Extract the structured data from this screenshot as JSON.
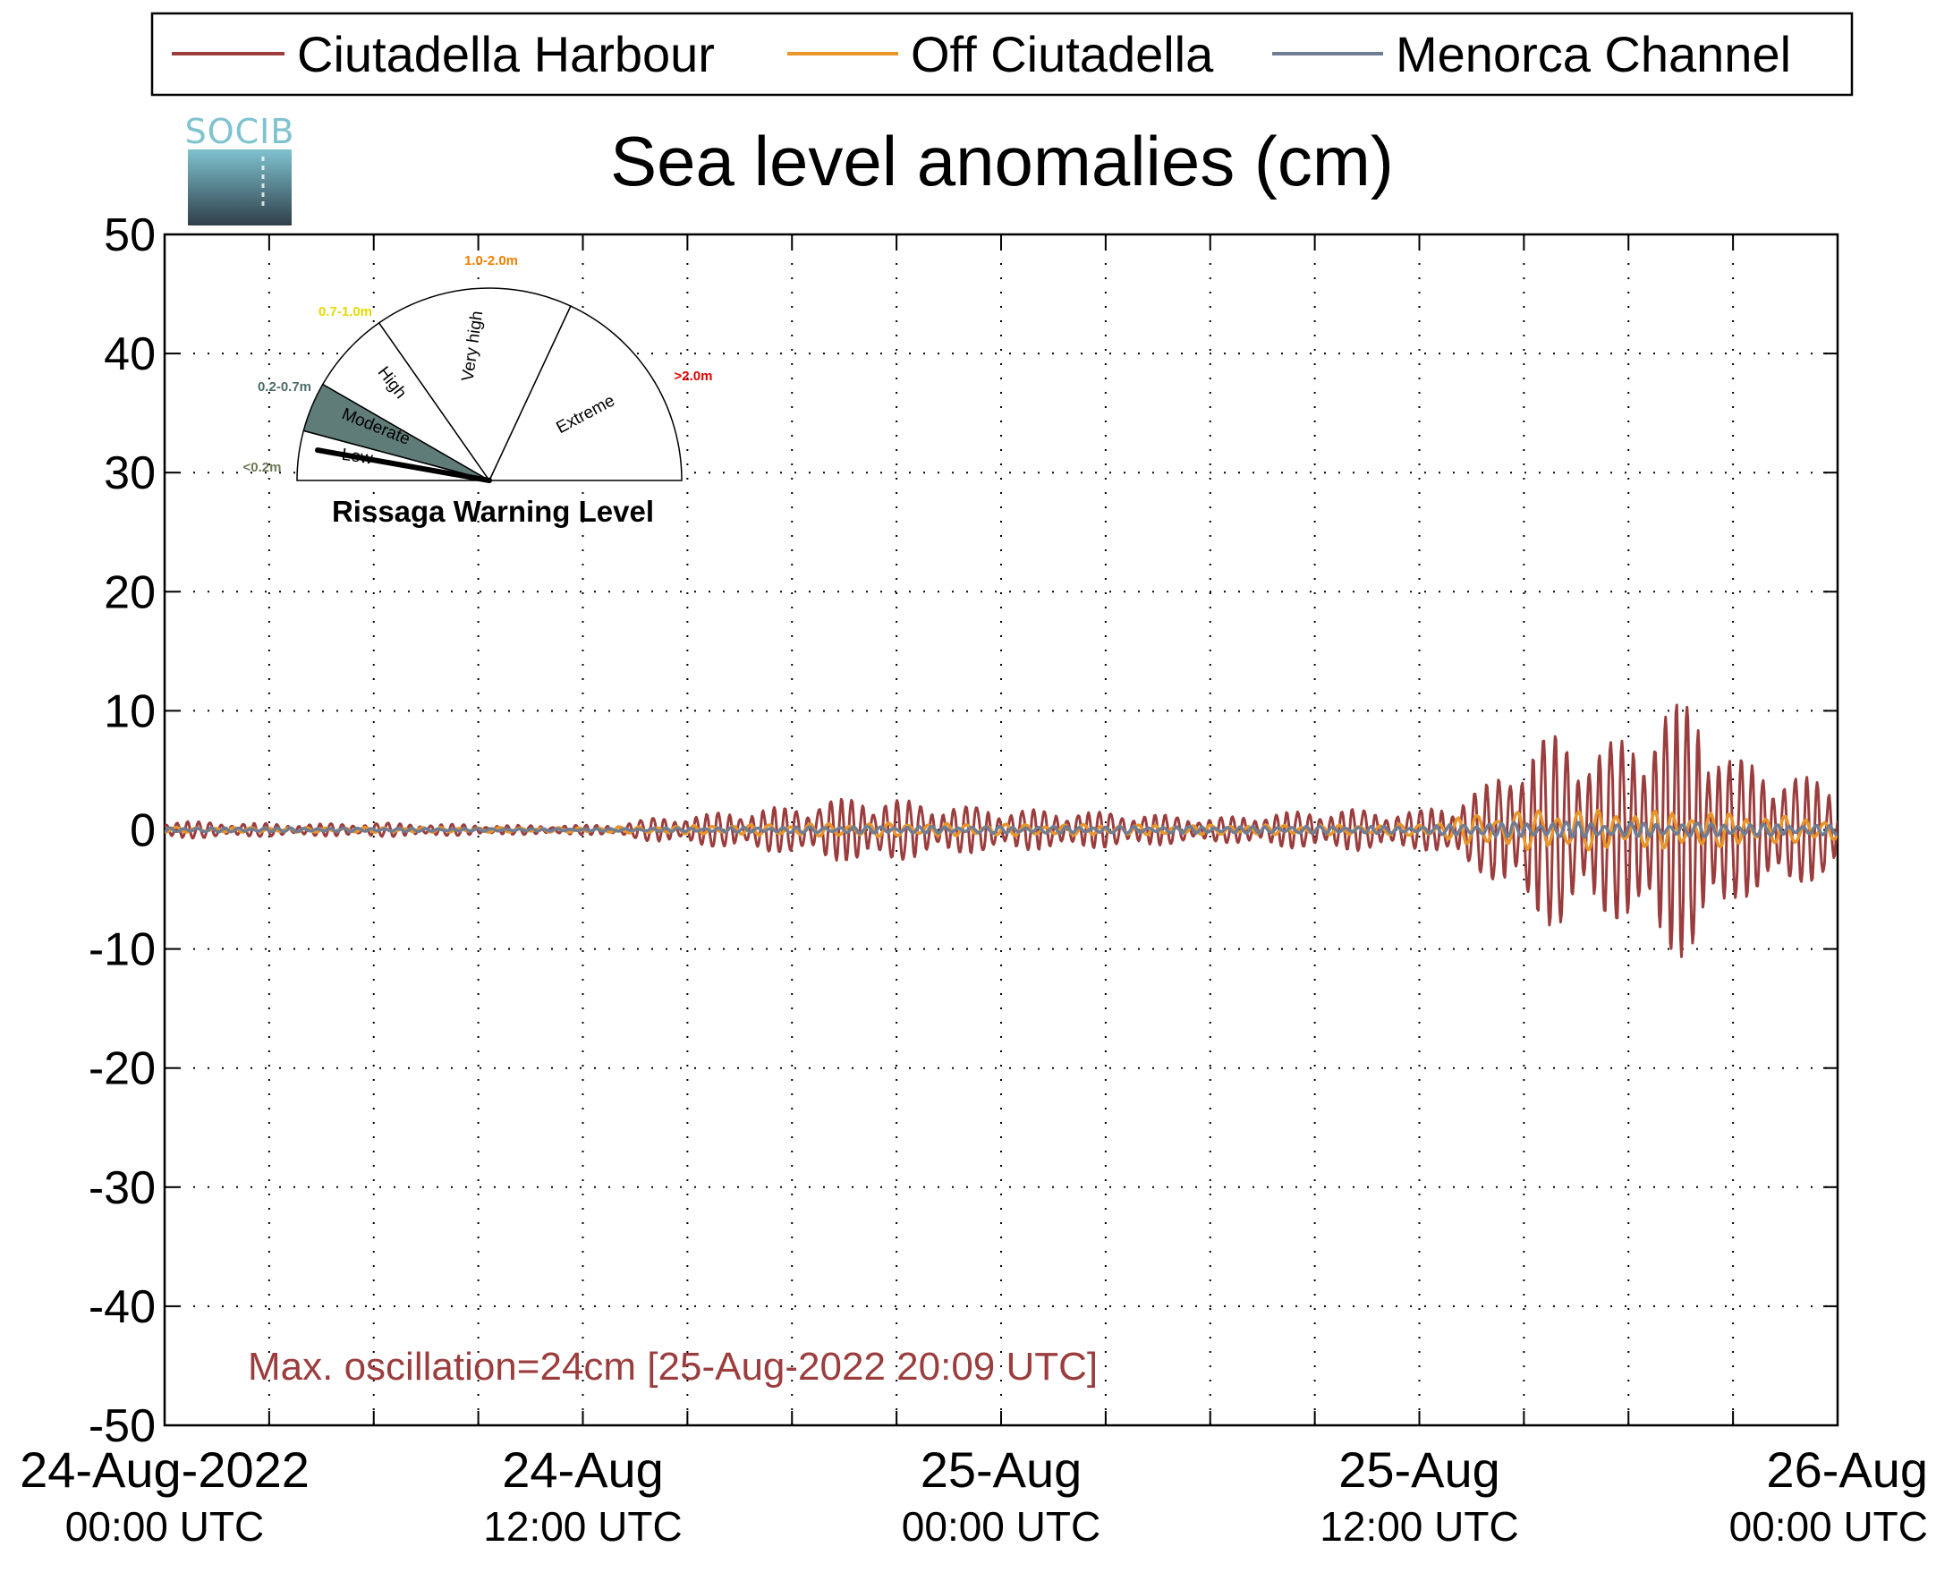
{
  "chart_data": {
    "type": "line",
    "title": "Sea level anomalies (cm)",
    "ylim": [
      -50,
      50
    ],
    "yticks": [
      50,
      40,
      30,
      20,
      10,
      0,
      -10,
      -20,
      -30,
      -40,
      -50
    ],
    "xlim": [
      "2022-08-24 00:00",
      "2022-08-26 00:00"
    ],
    "xtick_labels": [
      {
        "date": "24-Aug-2022",
        "time": "00:00 UTC"
      },
      {
        "date": "24-Aug",
        "time": "12:00 UTC"
      },
      {
        "date": "25-Aug",
        "time": "00:00 UTC"
      },
      {
        "date": "25-Aug",
        "time": "12:00 UTC"
      },
      {
        "date": "26-Aug",
        "time": "00:00 UTC"
      }
    ],
    "grid": true,
    "legend_position": "top",
    "annotation": "Max. oscillation=24cm [25-Aug-2022 20:09 UTC]",
    "series": [
      {
        "name": "Ciutadella Harbour",
        "color": "#9c3d3d",
        "x_hours": [
          0,
          2,
          4,
          6,
          8,
          10,
          12,
          13,
          14,
          15,
          16,
          17,
          18,
          19,
          20,
          21,
          22,
          24,
          26,
          28,
          30,
          31,
          32,
          33,
          34,
          35,
          36,
          37,
          38,
          39,
          40,
          41,
          42,
          43,
          44,
          45,
          46,
          47,
          48
        ],
        "amplitude_cm": [
          0.8,
          0.6,
          0.5,
          0.6,
          0.5,
          0.4,
          0.4,
          0.5,
          1.0,
          1.2,
          1.5,
          1.8,
          2.0,
          2.5,
          2.8,
          2.6,
          2.2,
          1.8,
          1.6,
          1.4,
          1.0,
          1.2,
          1.5,
          1.6,
          1.8,
          1.6,
          1.6,
          2.5,
          4.0,
          7.0,
          8.5,
          7.0,
          8.0,
          10.5,
          11.0,
          6.0,
          5.5,
          4.5,
          4.0
        ]
      },
      {
        "name": "Off Ciutadella",
        "color": "#e8952a",
        "x_hours": [
          0,
          12,
          16,
          20,
          24,
          30,
          34,
          36,
          38,
          40,
          42,
          44,
          46,
          48
        ],
        "amplitude_cm": [
          0.2,
          0.2,
          0.4,
          0.6,
          0.5,
          0.4,
          0.4,
          0.5,
          1.5,
          1.8,
          1.6,
          1.6,
          1.2,
          1.0
        ]
      },
      {
        "name": "Menorca Channel",
        "color": "#6f7d94",
        "x_hours": [
          0,
          12,
          16,
          20,
          24,
          30,
          34,
          36,
          38,
          40,
          42,
          44,
          46,
          48
        ],
        "amplitude_cm": [
          0.2,
          0.1,
          0.2,
          0.3,
          0.3,
          0.3,
          0.3,
          0.3,
          0.6,
          0.7,
          0.6,
          0.6,
          0.5,
          0.4
        ]
      }
    ]
  },
  "logo": {
    "text": "SOCIB"
  },
  "warning_gauge": {
    "title": "Rissaga Warning Level",
    "current_level": "Low",
    "segments": [
      {
        "name": "Low",
        "range": "<0.2m",
        "range_color": "#6b7a55"
      },
      {
        "name": "Moderate",
        "range": "0.2-0.7m",
        "range_color": "#4f6b6b",
        "fill": "#5f7c79"
      },
      {
        "name": "High",
        "range": "0.7-1.0m",
        "range_color": "#e6d800"
      },
      {
        "name": "Very high",
        "range": "1.0-2.0m",
        "range_color": "#f07f00"
      },
      {
        "name": "Extreme",
        "range": ">2.0m",
        "range_color": "#e00000"
      }
    ]
  }
}
